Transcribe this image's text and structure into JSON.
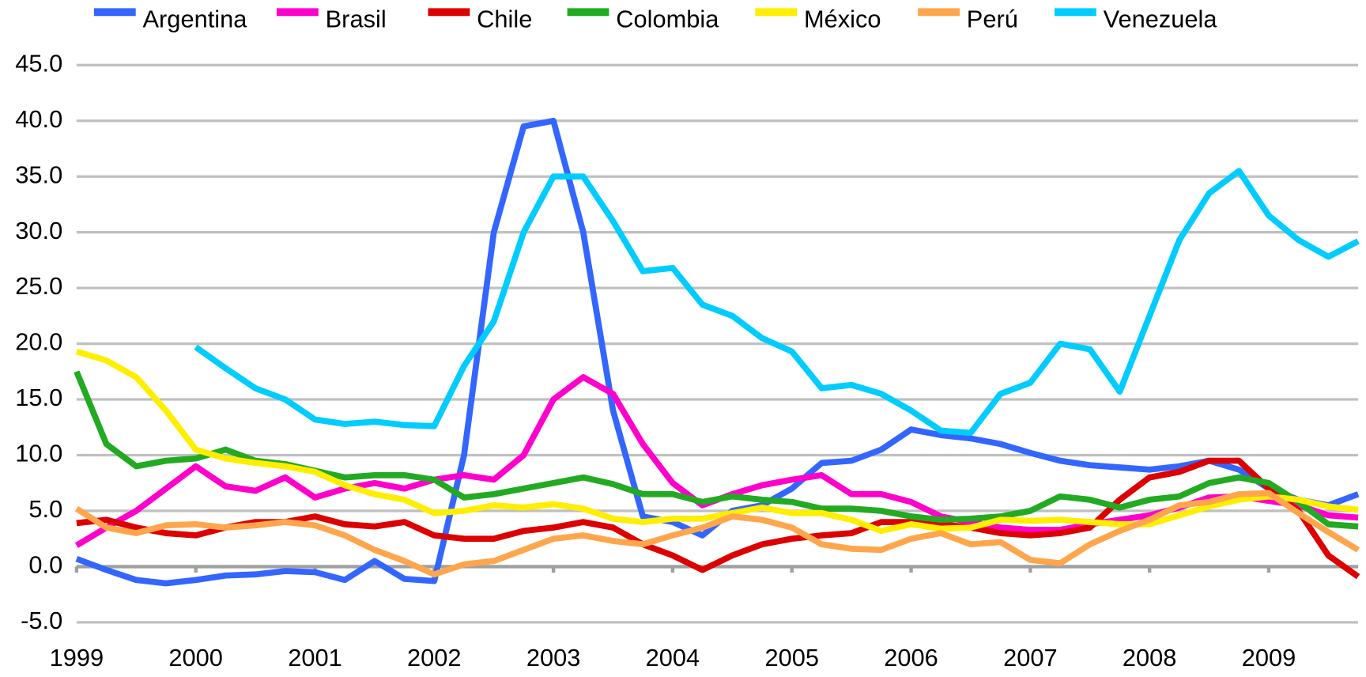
{
  "chart_data": {
    "type": "line",
    "x": [
      1999,
      1999.25,
      1999.5,
      1999.75,
      2000,
      2000.25,
      2000.5,
      2000.75,
      2001,
      2001.25,
      2001.5,
      2001.75,
      2002,
      2002.25,
      2002.5,
      2002.75,
      2003,
      2003.25,
      2003.5,
      2003.75,
      2004,
      2004.25,
      2004.5,
      2004.75,
      2005,
      2005.25,
      2005.5,
      2005.75,
      2006,
      2006.25,
      2006.5,
      2006.75,
      2007,
      2007.25,
      2007.5,
      2007.75,
      2008,
      2008.25,
      2008.5,
      2008.75,
      2009,
      2009.25,
      2009.5,
      2009.75
    ],
    "series": [
      {
        "name": "Argentina",
        "color": "#3366ff",
        "values": [
          0.7,
          -0.3,
          -1.2,
          -1.5,
          -1.2,
          -0.8,
          -0.7,
          -0.4,
          -0.5,
          -1.2,
          0.5,
          -1.1,
          -1.3,
          10,
          30,
          39.5,
          40,
          30,
          14,
          4.5,
          4,
          2.8,
          5,
          5.5,
          7,
          9.3,
          9.5,
          10.5,
          12.3,
          11.8,
          11.5,
          11,
          10.2,
          9.5,
          9.1,
          8.9,
          8.7,
          9,
          9.5,
          8.7,
          7,
          6,
          5.5,
          6.5
        ]
      },
      {
        "name": "Brasil",
        "color": "#ff00cc",
        "values": [
          1.9,
          3.5,
          5,
          7,
          9,
          7.2,
          6.8,
          8,
          6.2,
          7,
          7.5,
          7,
          7.8,
          8.2,
          7.8,
          10,
          15,
          17,
          15.5,
          11,
          7.5,
          5.5,
          6.5,
          7.3,
          7.8,
          8.2,
          6.5,
          6.5,
          5.8,
          4.5,
          4,
          3.5,
          3.3,
          3.3,
          3.8,
          4.2,
          4.6,
          5.3,
          6.2,
          6.3,
          5.9,
          5.5,
          4.6,
          4.4
        ]
      },
      {
        "name": "Chile",
        "color": "#dd0000",
        "values": [
          3.9,
          4.2,
          3.5,
          3,
          2.8,
          3.5,
          4,
          4,
          4.5,
          3.8,
          3.6,
          4,
          2.8,
          2.5,
          2.5,
          3.2,
          3.5,
          4,
          3.5,
          2,
          1,
          -0.3,
          1,
          2,
          2.5,
          2.8,
          3,
          4,
          4,
          3.8,
          3.5,
          3,
          2.8,
          3,
          3.5,
          6,
          8,
          8.5,
          9.5,
          9.5,
          7,
          5,
          1,
          -0.9
        ]
      },
      {
        "name": "Colombia",
        "color": "#22aa22",
        "values": [
          17.5,
          11,
          9,
          9.5,
          9.7,
          10.5,
          9.5,
          9.2,
          8.6,
          8,
          8.2,
          8.2,
          7.8,
          6.2,
          6.5,
          7,
          7.5,
          8,
          7.4,
          6.5,
          6.5,
          5.8,
          6.3,
          6,
          5.8,
          5.2,
          5.2,
          5,
          4.5,
          4.2,
          4.3,
          4.5,
          5,
          6.3,
          6,
          5.3,
          6,
          6.3,
          7.5,
          8,
          7.5,
          5.8,
          3.8,
          3.6
        ]
      },
      {
        "name": "México",
        "color": "#ffee00",
        "values": [
          19.3,
          18.5,
          17,
          14,
          10.5,
          9.7,
          9.3,
          9,
          8.5,
          7.3,
          6.5,
          6,
          4.8,
          5,
          5.5,
          5.3,
          5.6,
          5.2,
          4.3,
          4,
          4.3,
          4.3,
          4.8,
          5.3,
          4.8,
          4.8,
          4.2,
          3.2,
          3.8,
          3.4,
          3.5,
          4.2,
          4.1,
          4.2,
          4,
          3.8,
          3.8,
          4.6,
          5.4,
          6,
          6.3,
          6,
          5.4,
          5.1
        ]
      },
      {
        "name": "Perú",
        "color": "#ffa64d",
        "values": [
          5.2,
          3.5,
          3,
          3.7,
          3.8,
          3.5,
          3.7,
          4,
          3.7,
          2.8,
          1.5,
          0.5,
          -0.7,
          0.2,
          0.5,
          1.5,
          2.5,
          2.8,
          2.3,
          2,
          2.8,
          3.5,
          4.5,
          4.2,
          3.5,
          2,
          1.6,
          1.5,
          2.5,
          3,
          2,
          2.2,
          0.6,
          0.3,
          2,
          3.2,
          4.2,
          5.5,
          5.8,
          6.5,
          6.6,
          4.8,
          3.1,
          1.5
        ]
      },
      {
        "name": "Venezuela",
        "color": "#00ccff",
        "values": [
          null,
          null,
          null,
          null,
          19.7,
          17.8,
          16,
          15,
          13.2,
          12.8,
          13,
          12.7,
          12.6,
          18,
          22,
          30,
          35,
          35,
          31,
          26.5,
          26.8,
          23.5,
          22.5,
          20.5,
          19.3,
          16,
          16.3,
          15.5,
          14,
          12.2,
          12,
          15.5,
          16.5,
          20,
          19.5,
          15.7,
          22.5,
          29.3,
          33.5,
          35.5,
          31.5,
          29.3,
          27.8,
          29.2
        ]
      }
    ],
    "xlim": [
      1999,
      2009.75
    ],
    "xticks": [
      1999,
      2000,
      2001,
      2002,
      2003,
      2004,
      2005,
      2006,
      2007,
      2008,
      2009
    ],
    "ylim": [
      -5,
      45
    ],
    "yticks": [
      {
        "value": -5,
        "label": "-5.0"
      },
      {
        "value": 0,
        "label": "0.0"
      },
      {
        "value": 5,
        "label": "5.0"
      },
      {
        "value": 10,
        "label": "10.0"
      },
      {
        "value": 15,
        "label": "15.0"
      },
      {
        "value": 20,
        "label": "20.0"
      },
      {
        "value": 25,
        "label": "25.0"
      },
      {
        "value": 30,
        "label": "30.0"
      },
      {
        "value": 35,
        "label": "35.0"
      },
      {
        "value": 40,
        "label": "40.0"
      },
      {
        "value": 45,
        "label": "45.0"
      }
    ],
    "grid": true,
    "legend": "top"
  }
}
